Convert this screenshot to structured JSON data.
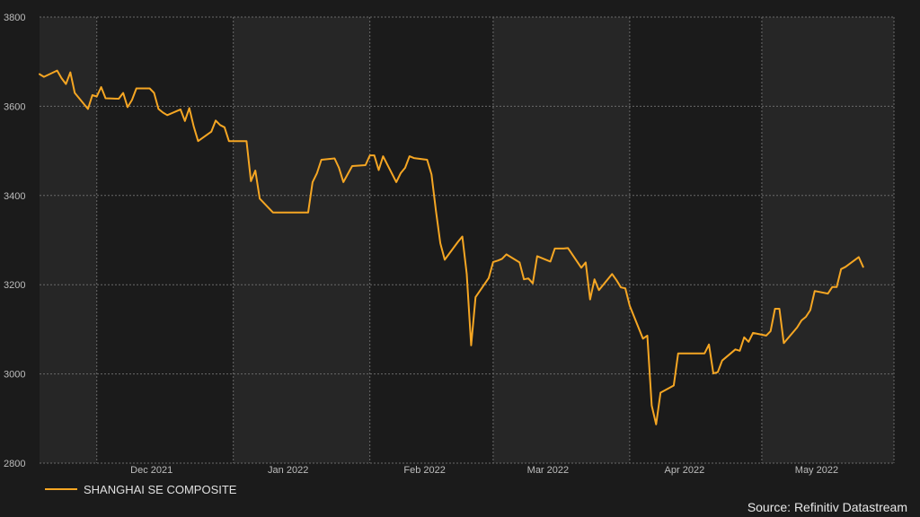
{
  "chart_data": {
    "type": "line",
    "title": "",
    "xlabel": "",
    "ylabel": "",
    "ylim": [
      2800,
      3800
    ],
    "yticks": [
      2800,
      3000,
      3200,
      3400,
      3600,
      3800
    ],
    "xlim": [
      "2021-11-18",
      "2022-05-31"
    ],
    "x_tick_labels": [
      {
        "label": "Dec 2021",
        "date": "2021-12-01"
      },
      {
        "label": "Jan 2022",
        "date": "2022-01-01"
      },
      {
        "label": "Feb 2022",
        "date": "2022-02-01"
      },
      {
        "label": "Mar 2022",
        "date": "2022-03-01"
      },
      {
        "label": "Apr 2022",
        "date": "2022-04-01"
      },
      {
        "label": "May 2022",
        "date": "2022-05-01"
      }
    ],
    "grid": true,
    "legend_position": "bottom-left",
    "series": [
      {
        "name": "SHANGHAI SE COMPOSITE",
        "color": "#f5a623",
        "points": [
          [
            "2021-11-18",
            3672
          ],
          [
            "2021-11-19",
            3666
          ],
          [
            "2021-11-22",
            3680
          ],
          [
            "2021-11-23",
            3663
          ],
          [
            "2021-11-24",
            3650
          ],
          [
            "2021-11-25",
            3676
          ],
          [
            "2021-11-26",
            3630
          ],
          [
            "2021-11-29",
            3594
          ],
          [
            "2021-11-30",
            3625
          ],
          [
            "2021-12-01",
            3622
          ],
          [
            "2021-12-02",
            3643
          ],
          [
            "2021-12-03",
            3618
          ],
          [
            "2021-12-06",
            3617
          ],
          [
            "2021-12-07",
            3630
          ],
          [
            "2021-12-08",
            3598
          ],
          [
            "2021-12-09",
            3614
          ],
          [
            "2021-12-10",
            3640
          ],
          [
            "2021-12-13",
            3640
          ],
          [
            "2021-12-14",
            3630
          ],
          [
            "2021-12-15",
            3594
          ],
          [
            "2021-12-16",
            3586
          ],
          [
            "2021-12-17",
            3580
          ],
          [
            "2021-12-20",
            3593
          ],
          [
            "2021-12-21",
            3567
          ],
          [
            "2021-12-22",
            3596
          ],
          [
            "2021-12-23",
            3555
          ],
          [
            "2021-12-24",
            3522
          ],
          [
            "2021-12-27",
            3543
          ],
          [
            "2021-12-28",
            3568
          ],
          [
            "2021-12-29",
            3558
          ],
          [
            "2021-12-30",
            3553
          ],
          [
            "2021-12-31",
            3522
          ],
          [
            "2022-01-04",
            3522
          ],
          [
            "2022-01-05",
            3432
          ],
          [
            "2022-01-06",
            3456
          ],
          [
            "2022-01-07",
            3393
          ],
          [
            "2022-01-10",
            3362
          ],
          [
            "2022-01-11",
            3362
          ],
          [
            "2022-01-12",
            3362
          ],
          [
            "2022-01-13",
            3362
          ],
          [
            "2022-01-14",
            3362
          ],
          [
            "2022-01-17",
            3362
          ],
          [
            "2022-01-18",
            3362
          ],
          [
            "2022-01-19",
            3430
          ],
          [
            "2022-01-20",
            3450
          ],
          [
            "2022-01-21",
            3480
          ],
          [
            "2022-01-24",
            3483
          ],
          [
            "2022-01-25",
            3462
          ],
          [
            "2022-01-26",
            3430
          ],
          [
            "2022-01-27",
            3448
          ],
          [
            "2022-01-28",
            3466
          ],
          [
            "2022-01-31",
            3468
          ],
          [
            "2022-02-01",
            3490
          ],
          [
            "2022-02-02",
            3490
          ],
          [
            "2022-02-03",
            3457
          ],
          [
            "2022-02-04",
            3488
          ],
          [
            "2022-02-07",
            3430
          ],
          [
            "2022-02-08",
            3450
          ],
          [
            "2022-02-09",
            3462
          ],
          [
            "2022-02-10",
            3488
          ],
          [
            "2022-02-11",
            3484
          ],
          [
            "2022-02-14",
            3480
          ],
          [
            "2022-02-15",
            3447
          ],
          [
            "2022-02-16",
            3366
          ],
          [
            "2022-02-17",
            3293
          ],
          [
            "2022-02-18",
            3256
          ],
          [
            "2022-02-21",
            3296
          ],
          [
            "2022-02-22",
            3308
          ],
          [
            "2022-02-23",
            3224
          ],
          [
            "2022-02-24",
            3064
          ],
          [
            "2022-02-25",
            3172
          ],
          [
            "2022-02-28",
            3215
          ],
          [
            "2022-03-01",
            3251
          ],
          [
            "2022-03-02",
            3254
          ],
          [
            "2022-03-03",
            3258
          ],
          [
            "2022-03-04",
            3268
          ],
          [
            "2022-03-07",
            3250
          ],
          [
            "2022-03-08",
            3212
          ],
          [
            "2022-03-09",
            3214
          ],
          [
            "2022-03-10",
            3203
          ],
          [
            "2022-03-11",
            3264
          ],
          [
            "2022-03-14",
            3252
          ],
          [
            "2022-03-15",
            3281
          ],
          [
            "2022-03-16",
            3281
          ],
          [
            "2022-03-17",
            3281
          ],
          [
            "2022-03-18",
            3282
          ],
          [
            "2022-03-21",
            3238
          ],
          [
            "2022-03-22",
            3250
          ],
          [
            "2022-03-23",
            3167
          ],
          [
            "2022-03-24",
            3212
          ],
          [
            "2022-03-25",
            3188
          ],
          [
            "2022-03-28",
            3224
          ],
          [
            "2022-03-29",
            3210
          ],
          [
            "2022-03-30",
            3194
          ],
          [
            "2022-03-31",
            3192
          ],
          [
            "2022-04-01",
            3153
          ],
          [
            "2022-04-04",
            3079
          ],
          [
            "2022-04-05",
            3086
          ],
          [
            "2022-04-06",
            2929
          ],
          [
            "2022-04-07",
            2887
          ],
          [
            "2022-04-08",
            2958
          ],
          [
            "2022-04-11",
            2974
          ],
          [
            "2022-04-12",
            3046
          ],
          [
            "2022-04-13",
            3046
          ],
          [
            "2022-04-14",
            3046
          ],
          [
            "2022-04-15",
            3046
          ],
          [
            "2022-04-18",
            3046
          ],
          [
            "2022-04-19",
            3066
          ],
          [
            "2022-04-20",
            3001
          ],
          [
            "2022-04-21",
            3004
          ],
          [
            "2022-04-22",
            3030
          ],
          [
            "2022-04-25",
            3055
          ],
          [
            "2022-04-26",
            3052
          ],
          [
            "2022-04-27",
            3082
          ],
          [
            "2022-04-28",
            3072
          ],
          [
            "2022-04-29",
            3092
          ],
          [
            "2022-05-02",
            3086
          ],
          [
            "2022-05-03",
            3096
          ],
          [
            "2022-05-04",
            3146
          ],
          [
            "2022-05-05",
            3146
          ],
          [
            "2022-05-06",
            3069
          ],
          [
            "2022-05-09",
            3104
          ],
          [
            "2022-05-10",
            3120
          ],
          [
            "2022-05-11",
            3128
          ],
          [
            "2022-05-12",
            3143
          ],
          [
            "2022-05-13",
            3186
          ],
          [
            "2022-05-16",
            3180
          ],
          [
            "2022-05-17",
            3195
          ],
          [
            "2022-05-18",
            3195
          ],
          [
            "2022-05-19",
            3235
          ],
          [
            "2022-05-20",
            3240
          ],
          [
            "2022-05-23",
            3262
          ],
          [
            "2022-05-24",
            3240
          ]
        ]
      }
    ]
  },
  "legend": {
    "label": "SHANGHAI SE COMPOSITE"
  },
  "footer": {
    "source": "Source: Refinitiv Datastream"
  },
  "colors": {
    "background": "#1b1b1b",
    "plot_light": "#262626",
    "plot_dark": "#1b1b1b",
    "grid": "#6a6a6a",
    "line": "#f5a623"
  }
}
